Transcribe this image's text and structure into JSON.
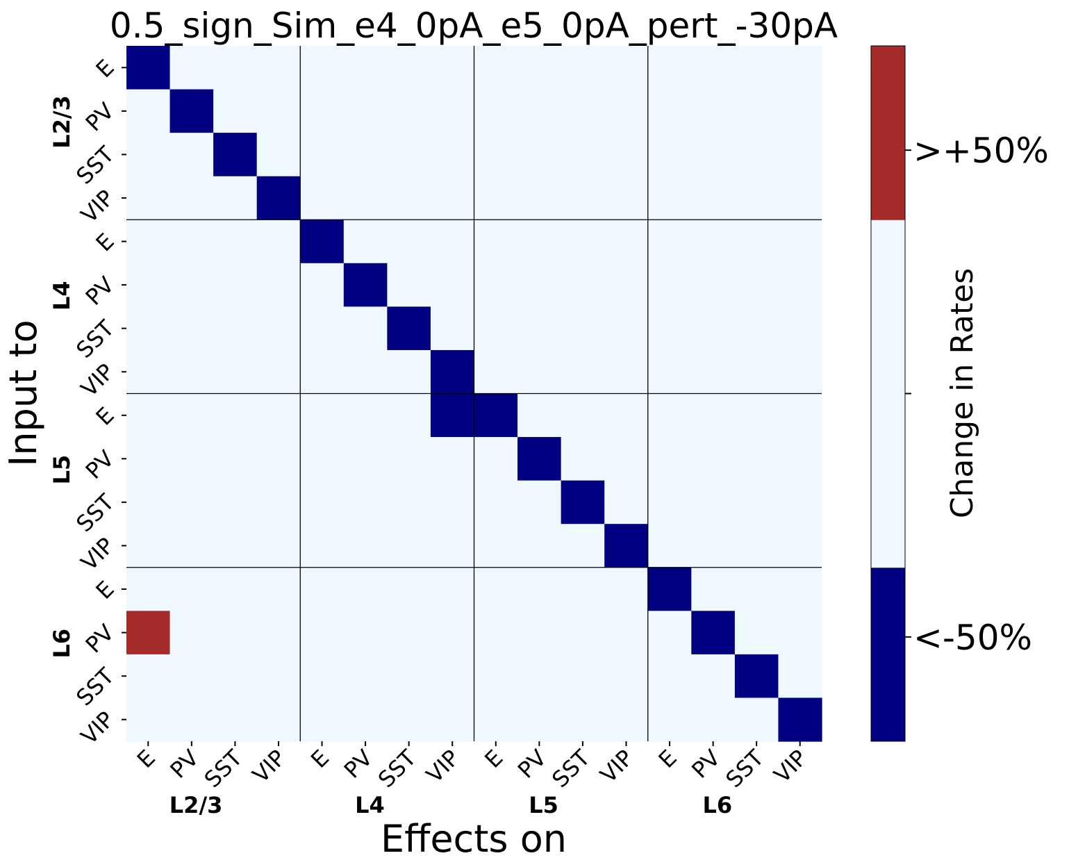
{
  "chart_data": {
    "type": "heatmap",
    "title": "0.5_sign_Sim_e4_0pA_e5_0pA_pert_-30pA",
    "xlabel": "Effects on",
    "ylabel": "Input to",
    "x_tick_labels": [
      "E",
      "PV",
      "SST",
      "VIP",
      "E",
      "PV",
      "SST",
      "VIP",
      "E",
      "PV",
      "SST",
      "VIP",
      "E",
      "PV",
      "SST",
      "VIP"
    ],
    "y_tick_labels": [
      "E",
      "PV",
      "SST",
      "VIP",
      "E",
      "PV",
      "SST",
      "VIP",
      "E",
      "PV",
      "SST",
      "VIP",
      "E",
      "PV",
      "SST",
      "VIP"
    ],
    "x_group_labels": [
      "L2/3",
      "L4",
      "L5",
      "L6"
    ],
    "y_group_labels": [
      "L2/3",
      "L4",
      "L5",
      "L6"
    ],
    "group_size": 4,
    "categories_levels": [
      -1,
      0,
      1
    ],
    "matrix": [
      [
        -1,
        0,
        0,
        0,
        0,
        0,
        0,
        0,
        0,
        0,
        0,
        0,
        0,
        0,
        0,
        0
      ],
      [
        0,
        -1,
        0,
        0,
        0,
        0,
        0,
        0,
        0,
        0,
        0,
        0,
        0,
        0,
        0,
        0
      ],
      [
        0,
        0,
        -1,
        0,
        0,
        0,
        0,
        0,
        0,
        0,
        0,
        0,
        0,
        0,
        0,
        0
      ],
      [
        0,
        0,
        0,
        -1,
        0,
        0,
        0,
        0,
        0,
        0,
        0,
        0,
        0,
        0,
        0,
        0
      ],
      [
        0,
        0,
        0,
        0,
        -1,
        0,
        0,
        0,
        0,
        0,
        0,
        0,
        0,
        0,
        0,
        0
      ],
      [
        0,
        0,
        0,
        0,
        0,
        -1,
        0,
        0,
        0,
        0,
        0,
        0,
        0,
        0,
        0,
        0
      ],
      [
        0,
        0,
        0,
        0,
        0,
        0,
        -1,
        0,
        0,
        0,
        0,
        0,
        0,
        0,
        0,
        0
      ],
      [
        0,
        0,
        0,
        0,
        0,
        0,
        0,
        -1,
        0,
        0,
        0,
        0,
        0,
        0,
        0,
        0
      ],
      [
        0,
        0,
        0,
        0,
        0,
        0,
        0,
        -1,
        -1,
        0,
        0,
        0,
        0,
        0,
        0,
        0
      ],
      [
        0,
        0,
        0,
        0,
        0,
        0,
        0,
        0,
        0,
        -1,
        0,
        0,
        0,
        0,
        0,
        0
      ],
      [
        0,
        0,
        0,
        0,
        0,
        0,
        0,
        0,
        0,
        0,
        -1,
        0,
        0,
        0,
        0,
        0
      ],
      [
        0,
        0,
        0,
        0,
        0,
        0,
        0,
        0,
        0,
        0,
        0,
        -1,
        0,
        0,
        0,
        0
      ],
      [
        0,
        0,
        0,
        0,
        0,
        0,
        0,
        0,
        0,
        0,
        0,
        0,
        -1,
        0,
        0,
        0
      ],
      [
        1,
        0,
        0,
        0,
        0,
        0,
        0,
        0,
        0,
        0,
        0,
        0,
        0,
        -1,
        0,
        0
      ],
      [
        0,
        0,
        0,
        0,
        0,
        0,
        0,
        0,
        0,
        0,
        0,
        0,
        0,
        0,
        -1,
        0
      ],
      [
        0,
        0,
        0,
        0,
        0,
        0,
        0,
        0,
        0,
        0,
        0,
        0,
        0,
        0,
        0,
        -1
      ]
    ],
    "colors": {
      "-1": "#000080",
      "0": "#f0f8ff",
      "1": "#a52a2a"
    },
    "colorbar": {
      "label": "Change in Rates",
      "tick_labels": [
        "<-50%",
        ">+50%"
      ],
      "segments": [
        "#000080",
        "#f0f8ff",
        "#f0f8ff",
        "#a52a2a"
      ]
    },
    "grid": false,
    "group_separators": true
  }
}
